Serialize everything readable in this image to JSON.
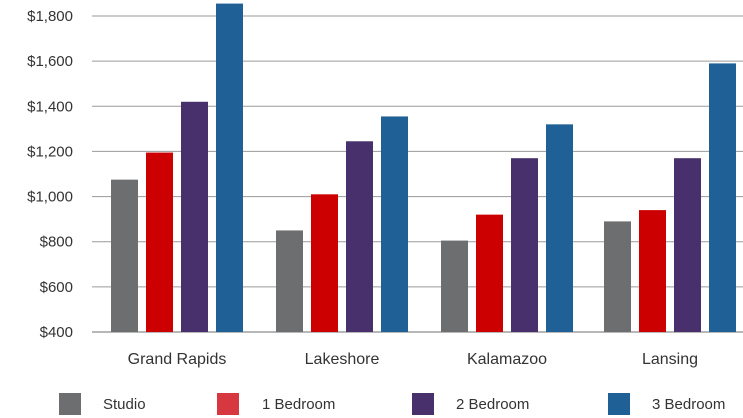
{
  "chart_data": {
    "type": "bar",
    "title": "",
    "xlabel": "",
    "ylabel": "",
    "ylim": [
      400,
      1800
    ],
    "yticks": [
      400,
      600,
      800,
      1000,
      1200,
      1400,
      1600,
      1800
    ],
    "ytick_labels": [
      "$400",
      "$600",
      "$800",
      "$1,000",
      "$1,200",
      "$1,400",
      "$1,600",
      "$1,800"
    ],
    "grid": "horizontal",
    "legend_position": "bottom",
    "categories": [
      "Grand Rapids",
      "Lakeshore",
      "Kalamazoo",
      "Lansing"
    ],
    "series": [
      {
        "name": "Studio",
        "color": "#6d6e70",
        "values": [
          1075,
          850,
          805,
          890
        ]
      },
      {
        "name": "1 Bedroom",
        "color": "#cc0000",
        "values": [
          1195,
          1010,
          920,
          940
        ]
      },
      {
        "name": "2 Bedroom",
        "color": "#47306b",
        "values": [
          1420,
          1245,
          1170,
          1170
        ]
      },
      {
        "name": "3 Bedroom",
        "color": "#1f6196",
        "values": [
          1855,
          1355,
          1320,
          1590
        ]
      }
    ],
    "legend_swatch_colors": [
      "#6d6e70",
      "#d7373f",
      "#47306b",
      "#1f6196"
    ]
  }
}
